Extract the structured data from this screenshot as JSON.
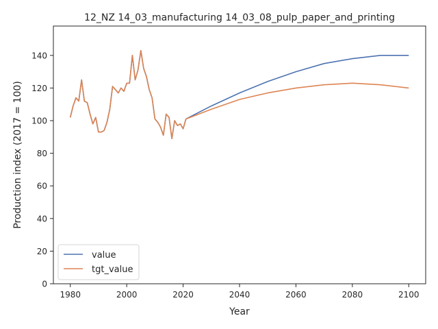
{
  "chart_data": {
    "type": "line",
    "title": "12_NZ 14_03_manufacturing 14_03_08_pulp_paper_and_printing",
    "xlabel": "Year",
    "ylabel": "Production index (2017 = 100)",
    "xlim": [
      1974,
      2106
    ],
    "ylim": [
      0,
      158
    ],
    "xticks": [
      1980,
      2000,
      2020,
      2040,
      2060,
      2080,
      2100
    ],
    "yticks": [
      0,
      20,
      40,
      60,
      80,
      100,
      120,
      140
    ],
    "grid": false,
    "legend_position": "lower-left",
    "series": [
      {
        "name": "value",
        "color": "#4c72b0",
        "x": [
          1980,
          1981,
          1982,
          1983,
          1984,
          1985,
          1986,
          1987,
          1988,
          1989,
          1990,
          1991,
          1992,
          1993,
          1994,
          1995,
          1996,
          1997,
          1998,
          1999,
          2000,
          2001,
          2002,
          2003,
          2004,
          2005,
          2006,
          2007,
          2008,
          2009,
          2010,
          2011,
          2012,
          2013,
          2014,
          2015,
          2016,
          2017,
          2018,
          2019,
          2020,
          2021,
          2030,
          2040,
          2050,
          2060,
          2070,
          2080,
          2090,
          2100
        ],
        "y": [
          102,
          109,
          114,
          112,
          125,
          112,
          111,
          104,
          98,
          102,
          93,
          93,
          94,
          99,
          107,
          121,
          119,
          117,
          120,
          118,
          123,
          123,
          140,
          125,
          131,
          143,
          132,
          127,
          119,
          114,
          101,
          99,
          96,
          91,
          104,
          102,
          89,
          100,
          97,
          98,
          95,
          101,
          109,
          117,
          124,
          130,
          135,
          138,
          140,
          140
        ]
      },
      {
        "name": "tgt_value",
        "color": "#dd8452",
        "x": [
          1980,
          1981,
          1982,
          1983,
          1984,
          1985,
          1986,
          1987,
          1988,
          1989,
          1990,
          1991,
          1992,
          1993,
          1994,
          1995,
          1996,
          1997,
          1998,
          1999,
          2000,
          2001,
          2002,
          2003,
          2004,
          2005,
          2006,
          2007,
          2008,
          2009,
          2010,
          2011,
          2012,
          2013,
          2014,
          2015,
          2016,
          2017,
          2018,
          2019,
          2020,
          2021,
          2030,
          2040,
          2050,
          2060,
          2070,
          2080,
          2090,
          2100
        ],
        "y": [
          102,
          109,
          114,
          112,
          125,
          112,
          111,
          104,
          98,
          102,
          93,
          93,
          94,
          99,
          107,
          121,
          119,
          117,
          120,
          118,
          123,
          123,
          140,
          125,
          131,
          143,
          132,
          127,
          119,
          114,
          101,
          99,
          96,
          91,
          104,
          102,
          89,
          100,
          97,
          98,
          95,
          101,
          107,
          113,
          117,
          120,
          122,
          123,
          122,
          120
        ]
      }
    ]
  }
}
